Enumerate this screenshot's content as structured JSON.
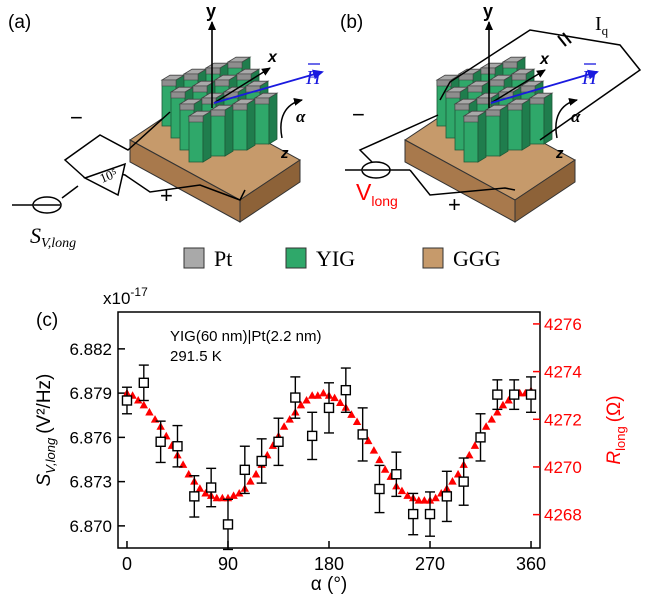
{
  "figure": {
    "panel_a": "(a)",
    "panel_b": "(b)",
    "panel_c": "(c)",
    "axis_y": "y",
    "axis_x": "x",
    "axis_z": "z",
    "field": "H",
    "angle": "α",
    "minus": "−",
    "plus": "+",
    "amplifier": "10⁵",
    "signal_sym": "S",
    "signal_sub": "V,long",
    "current_sym": "I",
    "current_sub": "q",
    "voltage_sym": "V",
    "voltage_sub": "long",
    "legend": [
      {
        "label": "Pt",
        "color": "#a9a9a9"
      },
      {
        "label": "YIG",
        "color": "#2fa86a"
      },
      {
        "label": "GGG",
        "color": "#c69a6b"
      }
    ]
  },
  "chart_data": {
    "type": "scatter",
    "annotation": [
      "YIG(60 nm)|Pt(2.2 nm)",
      "291.5 K"
    ],
    "exponent_label": "x10",
    "exponent_power": "-17",
    "xlabel": "α (°)",
    "xlim": [
      -8,
      368
    ],
    "xticks": [
      0,
      90,
      180,
      270,
      360
    ],
    "ylabel_left": {
      "sym": "S",
      "sub": "V,long",
      "unit": "(V²/Hz)"
    },
    "ylim_left": [
      6.8685,
      6.8845
    ],
    "yticks_left": [
      "6.870",
      "6.873",
      "6.876",
      "6.879",
      "6.882"
    ],
    "ylabel_right": {
      "sym": "R",
      "sub": "long",
      "unit": "(Ω)"
    },
    "ylim_right": [
      4266.6,
      4276.5
    ],
    "yticks_right": [
      4268,
      4270,
      4272,
      4274,
      4276
    ],
    "colors": {
      "left": "#000000",
      "right": "#ff0000"
    },
    "series": [
      {
        "axis": "left",
        "marker": "open-square",
        "x": [
          0,
          15,
          30,
          45,
          60,
          75,
          90,
          105,
          120,
          135,
          150,
          165,
          180,
          195,
          210,
          225,
          240,
          255,
          270,
          285,
          300,
          315,
          330,
          345,
          360
        ],
        "y": [
          6.8785,
          6.8797,
          6.8757,
          6.8754,
          6.872,
          6.8726,
          6.8701,
          6.8738,
          6.8744,
          6.8757,
          6.8787,
          6.8761,
          6.878,
          6.8792,
          6.8762,
          6.8725,
          6.8735,
          6.8708,
          6.8708,
          6.872,
          6.873,
          6.876,
          6.8789,
          6.8789,
          6.8789
        ],
        "err": [
          0.0009,
          0.0012,
          0.0014,
          0.0014,
          0.0014,
          0.0013,
          0.0017,
          0.0016,
          0.0015,
          0.0016,
          0.0014,
          0.0016,
          0.0017,
          0.0015,
          0.0018,
          0.0016,
          0.0015,
          0.0014,
          0.0015,
          0.0017,
          0.0016,
          0.0016,
          0.001,
          0.001,
          0.0012
        ]
      },
      {
        "axis": "right",
        "marker": "filled-triangle",
        "x": [
          0,
          5,
          10,
          15,
          20,
          25,
          30,
          35,
          40,
          45,
          50,
          55,
          60,
          65,
          70,
          75,
          80,
          85,
          90,
          95,
          100,
          105,
          110,
          115,
          120,
          125,
          130,
          135,
          140,
          145,
          150,
          155,
          160,
          165,
          170,
          175,
          180,
          185,
          190,
          195,
          200,
          205,
          210,
          215,
          220,
          225,
          230,
          235,
          240,
          245,
          250,
          255,
          260,
          265,
          270,
          275,
          280,
          285,
          290,
          295,
          300,
          305,
          310,
          315,
          320,
          325,
          330,
          335,
          340,
          345,
          350,
          355,
          360
        ],
        "y": [
          4273.1,
          4273.0,
          4272.8,
          4272.6,
          4272.3,
          4272.0,
          4271.7,
          4271.3,
          4270.9,
          4270.5,
          4270.1,
          4269.7,
          4269.4,
          4269.1,
          4268.9,
          4268.8,
          4268.7,
          4268.7,
          4268.7,
          4268.8,
          4268.9,
          4269.1,
          4269.4,
          4269.7,
          4270.1,
          4270.5,
          4270.9,
          4271.3,
          4271.7,
          4272.0,
          4272.3,
          4272.6,
          4272.8,
          4273.0,
          4273.0,
          4273.1,
          4273.0,
          4272.9,
          4272.7,
          4272.5,
          4272.2,
          4271.9,
          4271.5,
          4271.1,
          4270.7,
          4270.3,
          4269.9,
          4269.6,
          4269.2,
          4269.0,
          4268.8,
          4268.7,
          4268.6,
          4268.6,
          4268.6,
          4268.7,
          4268.9,
          4269.1,
          4269.4,
          4269.7,
          4270.1,
          4270.5,
          4270.9,
          4271.3,
          4271.7,
          4272.0,
          4272.3,
          4272.6,
          4272.8,
          4273.0,
          4273.1,
          4273.1,
          4273.2
        ]
      }
    ]
  }
}
